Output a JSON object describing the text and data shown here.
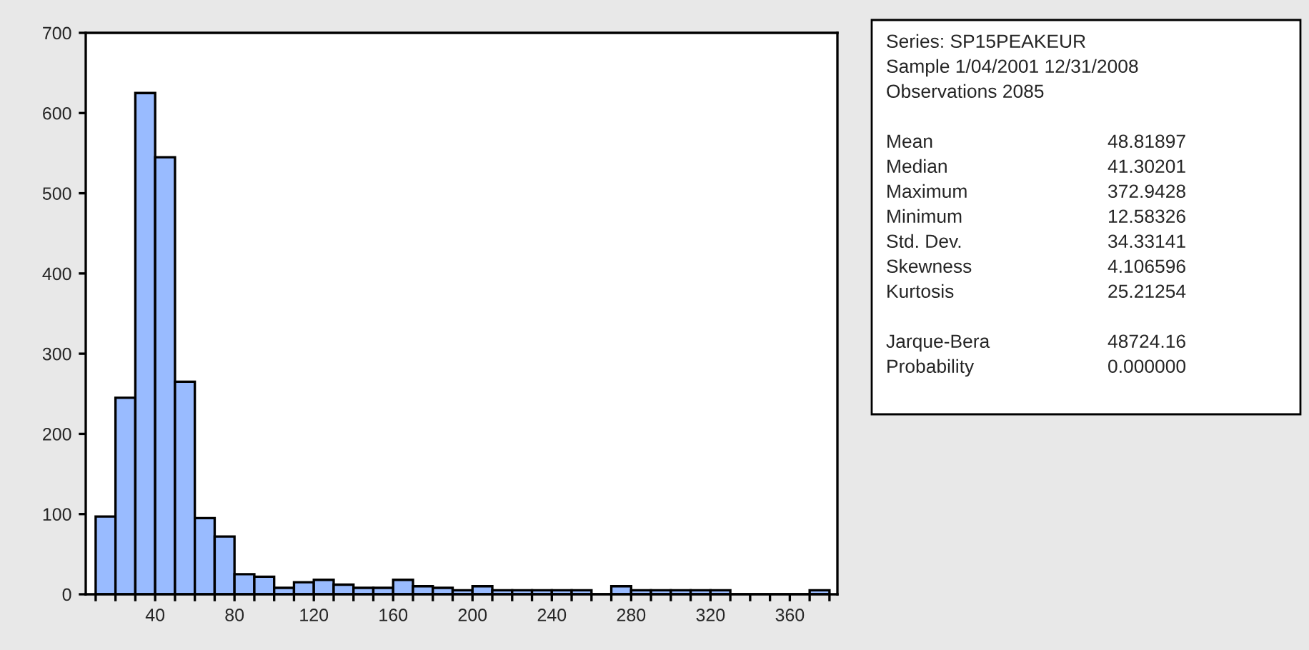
{
  "chart_data": {
    "type": "histogram",
    "bins": [
      10,
      20,
      30,
      40,
      50,
      60,
      70,
      80,
      90,
      100,
      110,
      120,
      130,
      140,
      150,
      160,
      170,
      180,
      190,
      200,
      210,
      220,
      230,
      240,
      250,
      260,
      270,
      280,
      290,
      300,
      310,
      320,
      330,
      340,
      350,
      360,
      370,
      380
    ],
    "values": [
      97,
      245,
      625,
      545,
      265,
      95,
      72,
      25,
      22,
      8,
      15,
      18,
      12,
      8,
      8,
      18,
      10,
      8,
      5,
      10,
      5,
      5,
      5,
      5,
      5,
      0,
      10,
      5,
      5,
      5,
      5,
      5,
      0,
      0,
      0,
      0,
      5
    ],
    "color": "#99bbff",
    "xlim": [
      5,
      384
    ],
    "xticks": [
      {
        "value": 10,
        "label": null
      },
      {
        "value": 20,
        "label": null
      },
      {
        "value": 30,
        "label": null
      },
      40,
      {
        "value": 50,
        "label": null
      },
      {
        "value": 60,
        "label": null
      },
      {
        "value": 70,
        "label": null
      },
      80,
      {
        "value": 90,
        "label": null
      },
      {
        "value": 100,
        "label": null
      },
      {
        "value": 110,
        "label": null
      },
      120,
      {
        "value": 130,
        "label": null
      },
      {
        "value": 140,
        "label": null
      },
      {
        "value": 150,
        "label": null
      },
      160,
      {
        "value": 170,
        "label": null
      },
      {
        "value": 180,
        "label": null
      },
      {
        "value": 190,
        "label": null
      },
      200,
      {
        "value": 210,
        "label": null
      },
      {
        "value": 220,
        "label": null
      },
      {
        "value": 230,
        "label": null
      },
      240,
      {
        "value": 250,
        "label": null
      },
      {
        "value": 260,
        "label": null
      },
      {
        "value": 270,
        "label": null
      },
      280,
      {
        "value": 290,
        "label": null
      },
      {
        "value": 300,
        "label": null
      },
      {
        "value": 310,
        "label": null
      },
      320,
      {
        "value": 330,
        "label": null
      },
      {
        "value": 340,
        "label": null
      },
      {
        "value": 350,
        "label": null
      },
      360,
      {
        "value": 370,
        "label": null
      },
      {
        "value": 380,
        "label": null
      }
    ],
    "ylim": [
      0,
      700
    ],
    "yticks": [
      0,
      100,
      200,
      300,
      400,
      500,
      600,
      700
    ],
    "grid": false,
    "annotations": [
      "Series: SP15PEAKEUR",
      "Sample 1/04/2001 12/31/2008",
      "Observations 2085",
      "Mean",
      "48.81897",
      "Median",
      "41.30201",
      "Maximum",
      "372.9428",
      "Minimum",
      "12.58326",
      "Std. Dev.",
      "34.33141",
      "Skewness",
      "4.106596",
      "Kurtosis",
      "25.21254",
      "Jarque-Bera",
      "48724.16",
      "Probability",
      "0.000000"
    ]
  }
}
